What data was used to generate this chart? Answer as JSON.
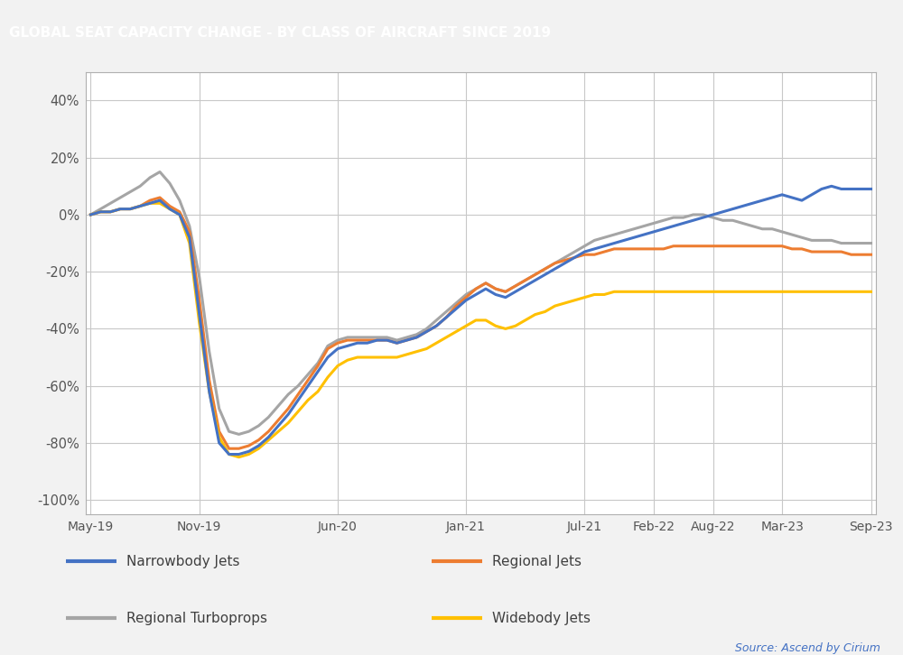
{
  "title": "GLOBAL SEAT CAPACITY CHANGE - BY CLASS OF AIRCRAFT SINCE 2019",
  "title_bg": "#000000",
  "title_color": "#ffffff",
  "source_text": "Source: Ascend by Cirium",
  "source_color": "#4472c4",
  "ylabel_ticks": [
    "40%",
    "20%",
    "0%",
    "-20%",
    "-40%",
    "-60%",
    "-80%",
    "-100%"
  ],
  "ytick_vals": [
    0.4,
    0.2,
    0.0,
    -0.2,
    -0.4,
    -0.6,
    -0.8,
    -1.0
  ],
  "ylim": [
    -1.05,
    0.5
  ],
  "xtick_labels": [
    "May-19",
    "Nov-19",
    "Jun-20",
    "Jan-21",
    "Jul-21",
    "Feb-22",
    "Aug-22",
    "Mar-23",
    "Sep-23"
  ],
  "xtick_positions": [
    0,
    11,
    25,
    38,
    50,
    57,
    63,
    70,
    79
  ],
  "xlim": [
    -0.5,
    79.5
  ],
  "colors": {
    "narrowbody": "#4472c4",
    "regional_jets": "#ed7d31",
    "regional_turboprops": "#a5a5a5",
    "widebody": "#ffc000"
  },
  "legend_labels": [
    "Narrowbody Jets",
    "Regional Jets",
    "Regional Turboprops",
    "Widebody Jets"
  ],
  "background_plot": "#ffffff",
  "background_fig": "#f2f2f2",
  "grid_color": "#c8c8c8",
  "line_width": 2.2,
  "narrowbody": [
    0.0,
    0.01,
    0.01,
    0.02,
    0.02,
    0.03,
    0.04,
    0.05,
    0.02,
    0.0,
    -0.08,
    -0.35,
    -0.62,
    -0.8,
    -0.84,
    -0.84,
    -0.83,
    -0.81,
    -0.78,
    -0.74,
    -0.7,
    -0.65,
    -0.6,
    -0.55,
    -0.5,
    -0.47,
    -0.46,
    -0.45,
    -0.45,
    -0.44,
    -0.44,
    -0.45,
    -0.44,
    -0.43,
    -0.41,
    -0.39,
    -0.36,
    -0.33,
    -0.3,
    -0.28,
    -0.26,
    -0.28,
    -0.29,
    -0.27,
    -0.25,
    -0.23,
    -0.21,
    -0.19,
    -0.17,
    -0.15,
    -0.13,
    -0.12,
    -0.11,
    -0.1,
    -0.09,
    -0.08,
    -0.07,
    -0.06,
    -0.05,
    -0.04,
    -0.03,
    -0.02,
    -0.01,
    0.0,
    0.01,
    0.02,
    0.03,
    0.04,
    0.05,
    0.06,
    0.07,
    0.06,
    0.05,
    0.07,
    0.09,
    0.1,
    0.09,
    0.09,
    0.09,
    0.09
  ],
  "regional_jets": [
    0.0,
    0.01,
    0.01,
    0.02,
    0.02,
    0.03,
    0.05,
    0.06,
    0.03,
    0.01,
    -0.06,
    -0.3,
    -0.58,
    -0.76,
    -0.82,
    -0.82,
    -0.81,
    -0.79,
    -0.76,
    -0.72,
    -0.68,
    -0.63,
    -0.58,
    -0.53,
    -0.47,
    -0.45,
    -0.44,
    -0.44,
    -0.44,
    -0.44,
    -0.44,
    -0.45,
    -0.44,
    -0.43,
    -0.41,
    -0.39,
    -0.36,
    -0.32,
    -0.29,
    -0.26,
    -0.24,
    -0.26,
    -0.27,
    -0.25,
    -0.23,
    -0.21,
    -0.19,
    -0.17,
    -0.16,
    -0.15,
    -0.14,
    -0.14,
    -0.13,
    -0.12,
    -0.12,
    -0.12,
    -0.12,
    -0.12,
    -0.12,
    -0.11,
    -0.11,
    -0.11,
    -0.11,
    -0.11,
    -0.11,
    -0.11,
    -0.11,
    -0.11,
    -0.11,
    -0.11,
    -0.11,
    -0.12,
    -0.12,
    -0.13,
    -0.13,
    -0.13,
    -0.13,
    -0.14,
    -0.14,
    -0.14
  ],
  "regional_turboprops": [
    0.0,
    0.02,
    0.04,
    0.06,
    0.08,
    0.1,
    0.13,
    0.15,
    0.11,
    0.05,
    -0.04,
    -0.22,
    -0.48,
    -0.68,
    -0.76,
    -0.77,
    -0.76,
    -0.74,
    -0.71,
    -0.67,
    -0.63,
    -0.6,
    -0.56,
    -0.52,
    -0.46,
    -0.44,
    -0.43,
    -0.43,
    -0.43,
    -0.43,
    -0.43,
    -0.44,
    -0.43,
    -0.42,
    -0.4,
    -0.37,
    -0.34,
    -0.31,
    -0.28,
    -0.26,
    -0.24,
    -0.26,
    -0.27,
    -0.25,
    -0.23,
    -0.21,
    -0.19,
    -0.17,
    -0.15,
    -0.13,
    -0.11,
    -0.09,
    -0.08,
    -0.07,
    -0.06,
    -0.05,
    -0.04,
    -0.03,
    -0.02,
    -0.01,
    -0.01,
    0.0,
    0.0,
    -0.01,
    -0.02,
    -0.02,
    -0.03,
    -0.04,
    -0.05,
    -0.05,
    -0.06,
    -0.07,
    -0.08,
    -0.09,
    -0.09,
    -0.09,
    -0.1,
    -0.1,
    -0.1,
    -0.1
  ],
  "widebody": [
    0.0,
    0.01,
    0.01,
    0.02,
    0.02,
    0.03,
    0.04,
    0.04,
    0.02,
    0.0,
    -0.1,
    -0.38,
    -0.62,
    -0.78,
    -0.84,
    -0.85,
    -0.84,
    -0.82,
    -0.79,
    -0.76,
    -0.73,
    -0.69,
    -0.65,
    -0.62,
    -0.57,
    -0.53,
    -0.51,
    -0.5,
    -0.5,
    -0.5,
    -0.5,
    -0.5,
    -0.49,
    -0.48,
    -0.47,
    -0.45,
    -0.43,
    -0.41,
    -0.39,
    -0.37,
    -0.37,
    -0.39,
    -0.4,
    -0.39,
    -0.37,
    -0.35,
    -0.34,
    -0.32,
    -0.31,
    -0.3,
    -0.29,
    -0.28,
    -0.28,
    -0.27,
    -0.27,
    -0.27,
    -0.27,
    -0.27,
    -0.27,
    -0.27,
    -0.27,
    -0.27,
    -0.27,
    -0.27,
    -0.27,
    -0.27,
    -0.27,
    -0.27,
    -0.27,
    -0.27,
    -0.27,
    -0.27,
    -0.27,
    -0.27,
    -0.27,
    -0.27,
    -0.27,
    -0.27,
    -0.27,
    -0.27
  ]
}
